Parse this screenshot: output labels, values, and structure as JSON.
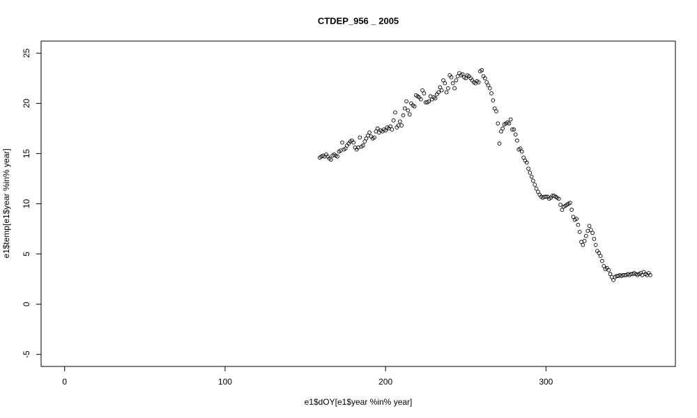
{
  "chart_data": {
    "type": "scatter",
    "title": "CTDEP_956 _ 2005",
    "x_label": "e1$dOY[e1$year %in% year]",
    "y_label": "e1$temp[e1$year %in% year]",
    "xlim": [
      -14.64,
      380.64
    ],
    "ylim": [
      -6.2,
      26.2
    ],
    "xticks": [
      0,
      100,
      200,
      300
    ],
    "yticks": [
      -5,
      0,
      5,
      10,
      15,
      20,
      25
    ],
    "grid": false,
    "color": "#000000",
    "x": [
      159,
      160,
      161,
      162,
      163,
      164,
      165,
      166,
      167,
      168,
      169,
      170,
      171,
      172,
      173,
      174,
      175,
      176,
      177,
      178,
      179,
      180,
      181,
      182,
      183,
      184,
      185,
      186,
      187,
      188,
      189,
      190,
      191,
      192,
      193,
      194,
      195,
      196,
      197,
      198,
      199,
      200,
      201,
      202,
      203,
      204,
      205,
      206,
      207,
      208,
      209,
      210,
      211,
      212,
      213,
      214,
      215,
      216,
      217,
      218,
      219,
      220,
      221,
      222,
      223,
      224,
      225,
      226,
      227,
      228,
      229,
      230,
      231,
      232,
      233,
      234,
      235,
      236,
      237,
      238,
      239,
      240,
      241,
      242,
      243,
      244,
      245,
      246,
      247,
      248,
      249,
      250,
      251,
      252,
      253,
      254,
      255,
      256,
      257,
      258,
      259,
      260,
      261,
      262,
      263,
      264,
      265,
      266,
      267,
      268,
      269,
      270,
      271,
      272,
      273,
      274,
      275,
      276,
      277,
      278,
      279,
      280,
      281,
      282,
      283,
      284,
      285,
      286,
      287,
      288,
      289,
      290,
      291,
      292,
      293,
      294,
      295,
      296,
      297,
      298,
      299,
      300,
      301,
      302,
      303,
      304,
      305,
      306,
      307,
      308,
      309,
      310,
      311,
      312,
      313,
      314,
      315,
      316,
      317,
      318,
      319,
      320,
      321,
      322,
      323,
      324,
      325,
      326,
      327,
      328,
      329,
      330,
      331,
      332,
      333,
      334,
      335,
      336,
      337,
      338,
      339,
      340,
      341,
      342,
      343,
      344,
      345,
      346,
      347,
      348,
      349,
      350,
      351,
      352,
      353,
      354,
      355,
      356,
      357,
      358,
      359,
      360,
      361,
      362,
      363,
      364,
      365
    ],
    "values": [
      14.6,
      14.7,
      14.8,
      14.7,
      14.9,
      14.7,
      14.5,
      14.4,
      14.8,
      14.9,
      14.8,
      14.7,
      15.2,
      15.3,
      16.1,
      15.4,
      15.5,
      15.8,
      16.0,
      16.2,
      16.3,
      16.1,
      15.6,
      15.4,
      15.6,
      16.6,
      15.7,
      15.8,
      16.2,
      16.5,
      16.8,
      17.1,
      16.7,
      16.5,
      16.6,
      17.2,
      17.5,
      17.1,
      17.3,
      17.2,
      17.4,
      17.3,
      17.6,
      17.5,
      17.7,
      17.4,
      18.3,
      19.1,
      17.6,
      17.8,
      18.2,
      17.8,
      18.8,
      19.5,
      20.2,
      19.3,
      18.9,
      20.0,
      19.8,
      19.7,
      20.8,
      20.7,
      20.6,
      20.4,
      21.3,
      21.0,
      20.1,
      20.1,
      20.2,
      20.7,
      20.4,
      20.6,
      20.5,
      20.9,
      21.1,
      21.6,
      21.3,
      22.3,
      22.0,
      21.1,
      21.5,
      22.8,
      22.6,
      22.0,
      21.5,
      22.3,
      22.7,
      23.0,
      22.8,
      22.9,
      22.6,
      22.5,
      22.8,
      22.7,
      22.5,
      22.3,
      22.1,
      22.0,
      22.2,
      22.1,
      23.2,
      23.3,
      22.7,
      22.5,
      22.1,
      21.8,
      21.5,
      21.0,
      20.3,
      19.5,
      19.2,
      18.0,
      16.0,
      17.2,
      17.5,
      17.9,
      18.0,
      18.1,
      18.0,
      18.4,
      17.4,
      17.4,
      16.9,
      16.3,
      15.4,
      15.5,
      15.2,
      14.6,
      14.3,
      14.1,
      13.5,
      13.1,
      12.7,
      12.3,
      11.9,
      11.5,
      11.2,
      10.9,
      10.7,
      10.6,
      10.7,
      10.7,
      10.7,
      10.5,
      10.6,
      10.8,
      10.8,
      10.7,
      10.6,
      10.5,
      9.9,
      9.4,
      9.7,
      9.8,
      9.9,
      10.0,
      10.1,
      9.4,
      8.7,
      8.4,
      8.5,
      7.9,
      7.2,
      6.2,
      5.9,
      6.3,
      6.8,
      7.3,
      7.8,
      7.4,
      7.1,
      6.5,
      5.9,
      5.3,
      5.1,
      4.8,
      4.3,
      3.8,
      3.5,
      3.6,
      3.4,
      3.0,
      2.7,
      2.4,
      2.7,
      2.8,
      2.8,
      2.9,
      2.8,
      2.9,
      2.9,
      2.9,
      3.0,
      2.9,
      3.0,
      3.0,
      3.1,
      3.0,
      2.9,
      3.0,
      3.1,
      2.9,
      3.2,
      3.0,
      2.9,
      3.1,
      2.9
    ]
  }
}
